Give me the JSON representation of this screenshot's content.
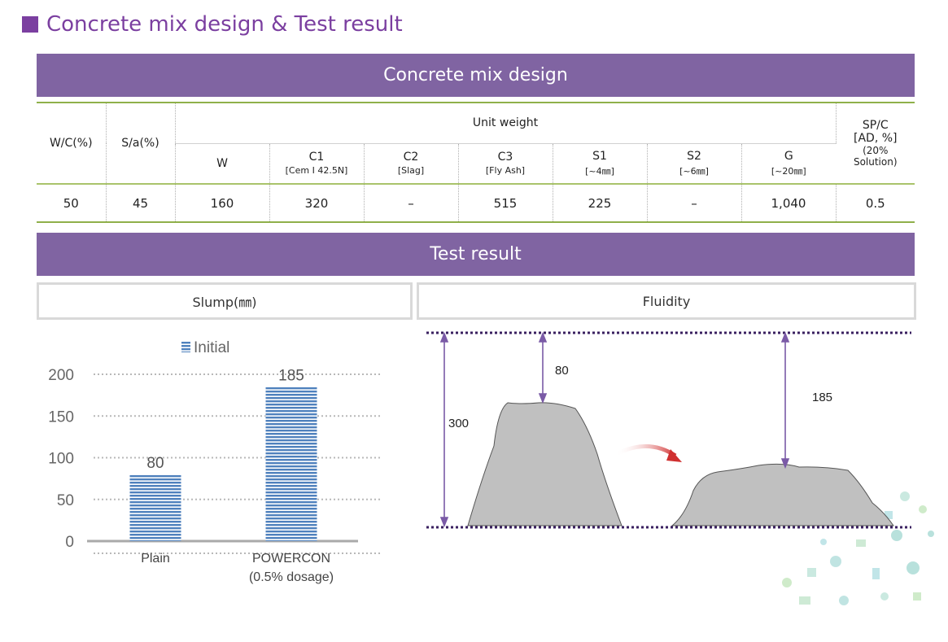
{
  "header": {
    "title": "Concrete mix design & Test result"
  },
  "mix_design": {
    "banner": "Concrete mix design",
    "col_wc": "W/C(%)",
    "col_sa": "S/a(%)",
    "unit_weight": "Unit weight",
    "col_spc_1": "SP/C",
    "col_spc_2": "[AD, %]",
    "col_spc_3": "(20%",
    "col_spc_4": "Solution)",
    "sub": [
      {
        "label": "W",
        "detail": ""
      },
      {
        "label": "C1",
        "detail": "[Cem Ⅰ 42.5N]"
      },
      {
        "label": "C2",
        "detail": "[Slag]"
      },
      {
        "label": "C3",
        "detail": "[Fly Ash]"
      },
      {
        "label": "S1",
        "detail": "[~4㎜]"
      },
      {
        "label": "S2",
        "detail": "[~6㎜]"
      },
      {
        "label": "G",
        "detail": "[~20㎜]"
      }
    ],
    "values": [
      "50",
      "45",
      "160",
      "320",
      "–",
      "515",
      "225",
      "–",
      "1,040",
      "0.5"
    ]
  },
  "test_result": {
    "banner": "Test result",
    "slump_header": "Slump(㎜)",
    "fluidity_header": "Fluidity"
  },
  "chart_data": [
    {
      "type": "bar",
      "categories": [
        "Plain",
        "POWERCON\n(0.5% dosage)"
      ],
      "series": [
        {
          "name": "Initial",
          "values": [
            80,
            185
          ],
          "color": "#4f81bd"
        }
      ],
      "data_labels": [
        "80",
        "185"
      ],
      "ylim": [
        0,
        200
      ],
      "yticks": [
        0,
        50,
        100,
        150,
        200
      ],
      "grid": true,
      "legend": "top"
    }
  ],
  "fluidity_diagram": {
    "cone_height": "300",
    "plain_drop": "80",
    "powercon_drop": "185",
    "shape_color": "#c0c0c0",
    "line_color": "#3a2060",
    "arrow_color": "#d03030"
  }
}
